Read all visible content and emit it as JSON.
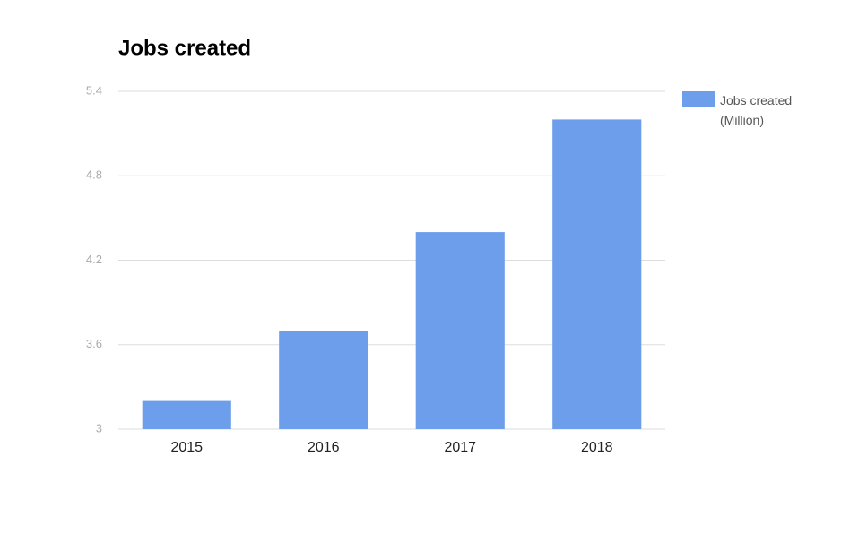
{
  "chart_data": {
    "type": "bar",
    "title": "Jobs created",
    "categories": [
      "2015",
      "2016",
      "2017",
      "2018"
    ],
    "series": [
      {
        "name": "Jobs created (Million)",
        "color": "#6d9eeb",
        "values": [
          3.2,
          3.7,
          4.4,
          5.2
        ]
      }
    ],
    "ylim": [
      3,
      5.4
    ],
    "yticks": [
      3,
      3.6,
      4.2,
      4.8,
      5.4
    ],
    "grid": true,
    "legend": "right"
  }
}
